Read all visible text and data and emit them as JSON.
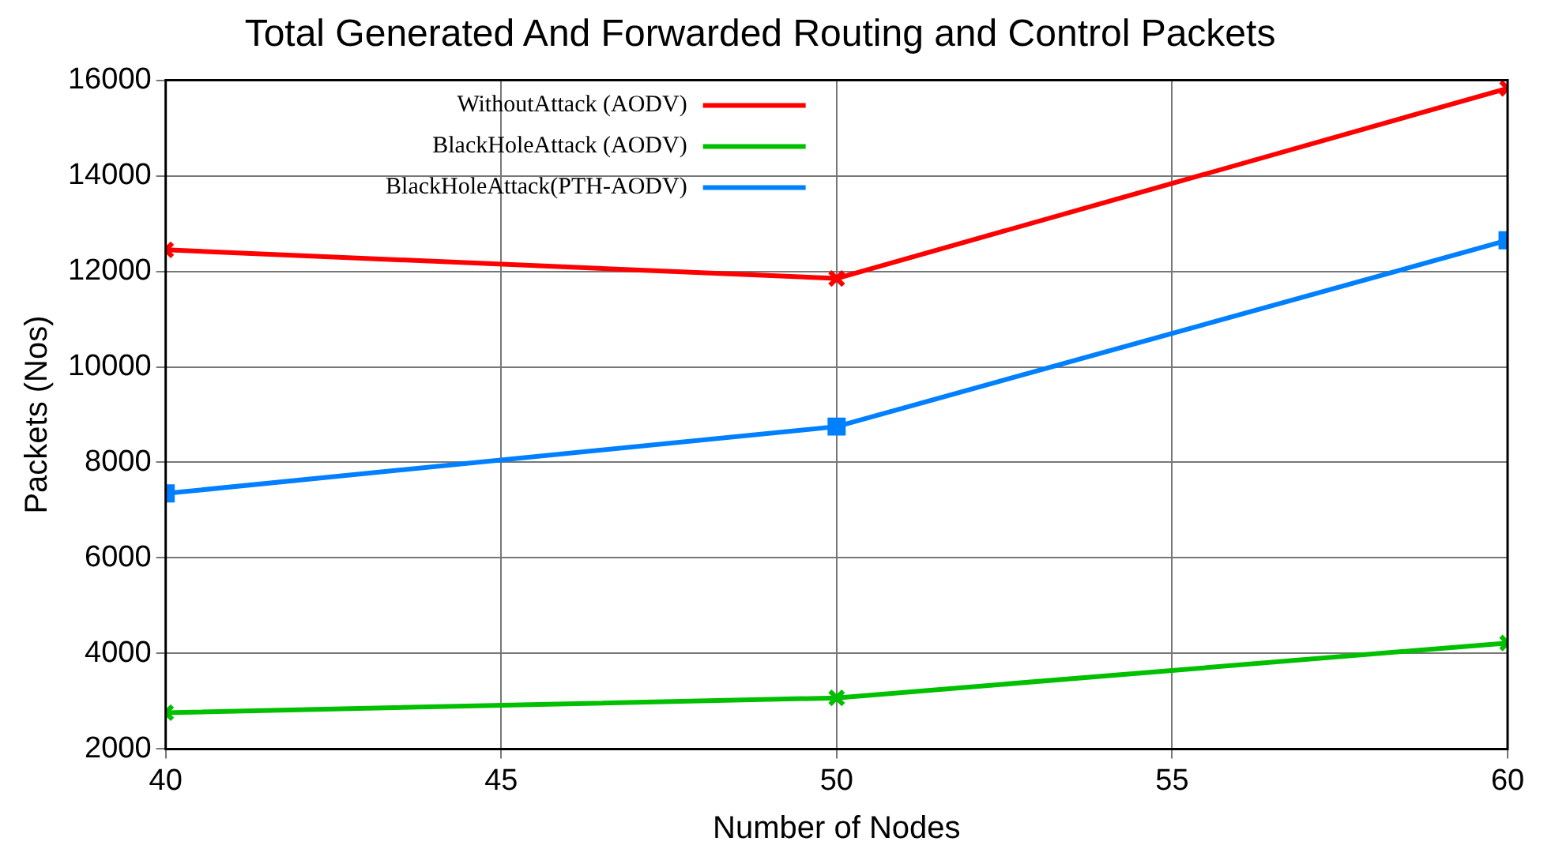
{
  "chart_data": {
    "type": "line",
    "title": "Total Generated And Forwarded Routing and Control Packets",
    "xlabel": "Number of Nodes",
    "ylabel": "Packets (Nos)",
    "x": [
      40,
      50,
      60
    ],
    "series": [
      {
        "name": "WithoutAttack (AODV)",
        "color": "#ff0000",
        "values": [
          12450,
          11850,
          15830
        ],
        "marker": "cross"
      },
      {
        "name": "BlackHoleAttack (AODV)",
        "color": "#00c000",
        "values": [
          2760,
          3070,
          4220
        ],
        "marker": "cross"
      },
      {
        "name": "BlackHoleAttack(PTH-AODV)",
        "color": "#0080ff",
        "values": [
          7350,
          8750,
          12650
        ],
        "marker": "square"
      }
    ],
    "xlim": [
      40,
      60
    ],
    "xticks": [
      40,
      45,
      50,
      55,
      60
    ],
    "ylim": [
      2000,
      16000
    ],
    "yticks": [
      2000,
      4000,
      6000,
      8000,
      10000,
      12000,
      14000,
      16000
    ],
    "grid": true,
    "legend": "top left",
    "line_style": "solid"
  }
}
